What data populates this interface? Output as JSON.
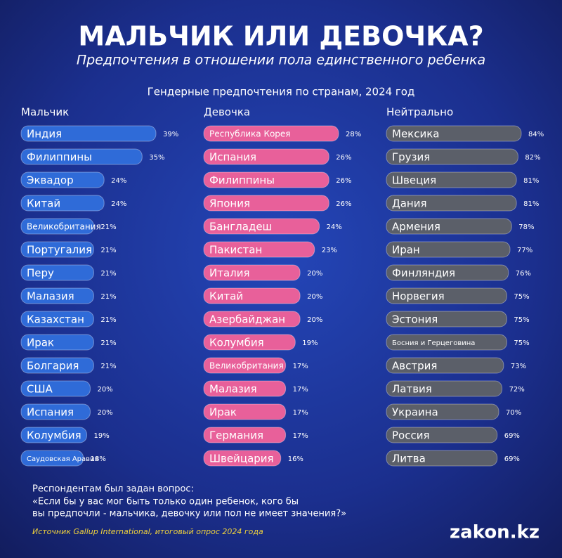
{
  "title": "МАЛЬЧИК ИЛИ ДЕВОЧКА?",
  "subtitle": "Предпочтения в отношении пола единственного ребенка",
  "charts_heading": "Гендерные предпочтения по странам, 2024 год",
  "chart_data": [
    {
      "type": "bar",
      "title": "Мальчик",
      "color": "#2f6bd8",
      "categories": [
        "Индия",
        "Филиппины",
        "Эквадор",
        "Китай",
        "Великобритания",
        "Португалия",
        "Перу",
        "Малазия",
        "Казахстан",
        "Ирак",
        "Болгария",
        "США",
        "Испания",
        "Колумбия",
        "Саудовская Аравия"
      ],
      "values": [
        39,
        35,
        24,
        24,
        21,
        21,
        21,
        21,
        21,
        21,
        21,
        20,
        20,
        19,
        18
      ],
      "value_labels": [
        "39%",
        "35%",
        "24%",
        "24%",
        "21%",
        "21%",
        "21%",
        "21%",
        "21%",
        "21%",
        "21%",
        "20%",
        "20%",
        "19%",
        "18%"
      ]
    },
    {
      "type": "bar",
      "title": "Девочка",
      "color": "#e8609a",
      "categories": [
        "Республика Корея",
        "Испания",
        "Филиппины",
        "Япония",
        "Бангладеш",
        "Пакистан",
        "Италия",
        "Китай",
        "Азербайджан",
        "Колумбия",
        "Великобритания",
        "Малазия",
        "Ирак",
        "Германия",
        "Швейцария"
      ],
      "values": [
        28,
        26,
        26,
        26,
        24,
        23,
        20,
        20,
        20,
        19,
        17,
        17,
        17,
        17,
        16
      ],
      "value_labels": [
        "28%",
        "26%",
        "26%",
        "26%",
        "24%",
        "23%",
        "20%",
        "20%",
        "20%",
        "19%",
        "17%",
        "17%",
        "17%",
        "17%",
        "16%"
      ]
    },
    {
      "type": "bar",
      "title": "Нейтрально",
      "color": "#5b5f69",
      "categories": [
        "Мексика",
        "Грузия",
        "Швеция",
        "Дания",
        "Армения",
        "Иран",
        "Финляндия",
        "Норвегия",
        "Эстония",
        "Босния и Герцеговина",
        "Австрия",
        "Латвия",
        "Украина",
        "Россия",
        "Литва"
      ],
      "values": [
        84,
        82,
        81,
        81,
        78,
        77,
        76,
        75,
        75,
        75,
        73,
        72,
        70,
        69,
        69
      ],
      "value_labels": [
        "84%",
        "82%",
        "81%",
        "81%",
        "78%",
        "77%",
        "76%",
        "75%",
        "75%",
        "75%",
        "73%",
        "72%",
        "70%",
        "69%",
        "69%"
      ]
    }
  ],
  "question": [
    "Респондентам был задан вопрос:",
    "«Если бы у вас мог быть только один ребенок, кого бы",
    "вы предпочли - мальчика, девочку или пол не имеет значения?»"
  ],
  "source": "Источник Gallup International, итоговый опрос 2024 года",
  "logo": "zakon.kz"
}
